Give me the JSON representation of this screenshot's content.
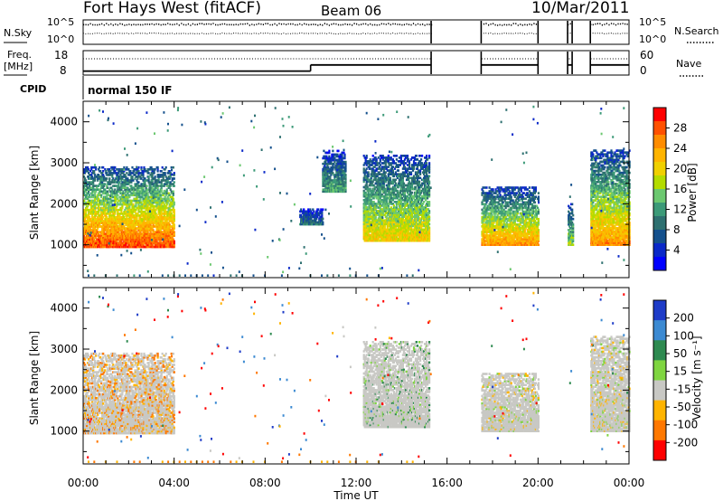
{
  "header": {
    "title": "Fort Hays West (fitACF)",
    "beam": "Beam 06",
    "date": "10/Mar/2011"
  },
  "noise_panel": {
    "left_label": "N.Sky",
    "left_ticks": [
      "10^5",
      "10^0"
    ],
    "right_ticks": [
      "10^5",
      "10^0"
    ],
    "right_label": "N.Search"
  },
  "freq_panel": {
    "left_label_1": "Freq.",
    "left_label_2": "[MHz]",
    "left_ticks": [
      "18",
      "8"
    ],
    "right_ticks": [
      "60",
      "0"
    ],
    "right_label": "Nave"
  },
  "cpid": {
    "label": "CPID",
    "value": "normal 150 IF"
  },
  "power_panel": {
    "ylabel": "Slant Range [km]",
    "yticks": [
      "4000",
      "3000",
      "2000",
      "1000"
    ],
    "colorbar_label": "Power [dB]",
    "colorbar_ticks": [
      "28",
      "24",
      "20",
      "16",
      "12",
      "8",
      "4"
    ],
    "colorbar_colors": [
      "#ff0000",
      "#ff5000",
      "#ff8c00",
      "#ffb400",
      "#f0d000",
      "#b4dc00",
      "#6cc870",
      "#3c9a78",
      "#2e7070",
      "#14508c",
      "#0a28c8",
      "#0000ff"
    ]
  },
  "velocity_panel": {
    "ylabel": "Slant Range [km]",
    "yticks": [
      "4000",
      "3000",
      "2000",
      "1000"
    ],
    "colorbar_label": "Velocity [m s⁻¹]",
    "colorbar_ticks": [
      "200",
      "100",
      "50",
      "15",
      "-15",
      "-50",
      "-100",
      "-200"
    ],
    "colorbar_colors": [
      "#1e3cc8",
      "#3c8ad2",
      "#2e8a50",
      "#7fd540",
      "#c8c8c4",
      "#ffb400",
      "#ff7800",
      "#ff0000"
    ]
  },
  "xaxis": {
    "label": "Time UT",
    "ticks": [
      "00:00",
      "04:00",
      "08:00",
      "12:00",
      "16:00",
      "20:00",
      "00:00"
    ]
  },
  "chart_data": {
    "type": "heatmap",
    "title": "Fort Hays West (fitACF)",
    "subtitle": "Beam 06",
    "date": "10/Mar/2011",
    "xlabel": "Time UT",
    "ylabel": "Slant Range [km]",
    "xlim": [
      0,
      24
    ],
    "ylim": [
      200,
      4500
    ],
    "freq_mhz_segments": [
      {
        "t_start": 0.0,
        "t_end": 10.0,
        "freq": 10
      },
      {
        "t_start": 10.0,
        "t_end": 15.3,
        "freq": 14
      }
    ],
    "data_gaps_hours": [
      [
        15.3,
        17.5
      ],
      [
        20.0,
        21.3
      ],
      [
        21.5,
        22.3
      ]
    ],
    "power_db": {
      "range": [
        0,
        30
      ],
      "features": [
        {
          "t_start": 0.0,
          "t_end": 4.0,
          "range_low_km": 950,
          "range_high_km": 2900,
          "peak_db": 28
        },
        {
          "t_start": 9.5,
          "t_end": 10.5,
          "range_low_km": 1500,
          "range_high_km": 1900,
          "peak_db": 8
        },
        {
          "t_start": 10.5,
          "t_end": 11.5,
          "range_low_km": 2300,
          "range_high_km": 3300,
          "peak_db": 12
        },
        {
          "t_start": 12.3,
          "t_end": 15.2,
          "range_low_km": 1100,
          "range_high_km": 3200,
          "peak_db": 20
        },
        {
          "t_start": 17.5,
          "t_end": 20.0,
          "range_low_km": 1000,
          "range_high_km": 2400,
          "peak_db": 24
        },
        {
          "t_start": 21.3,
          "t_end": 21.5,
          "range_low_km": 1000,
          "range_high_km": 2000,
          "peak_db": 16
        },
        {
          "t_start": 22.3,
          "t_end": 24.0,
          "range_low_km": 1000,
          "range_high_km": 3300,
          "peak_db": 24
        }
      ]
    },
    "velocity_ms": {
      "range": [
        -200,
        200
      ],
      "features": [
        {
          "t_start": 0.0,
          "t_end": 4.2,
          "range_low_km": 950,
          "range_high_km": 2900,
          "dominant": "ground scatter",
          "secondary_velocity": -50
        },
        {
          "t_start": 12.3,
          "t_end": 15.2,
          "range_low_km": 1100,
          "range_high_km": 3200,
          "dominant": "ground scatter",
          "secondary_velocity": 15
        },
        {
          "t_start": 17.5,
          "t_end": 20.0,
          "range_low_km": 1000,
          "range_high_km": 2400,
          "dominant": "ground scatter",
          "secondary_velocity": 0
        },
        {
          "t_start": 22.3,
          "t_end": 24.0,
          "range_low_km": 1000,
          "range_high_km": 3300,
          "dominant": "ground scatter",
          "secondary_velocity": 0
        }
      ]
    }
  }
}
